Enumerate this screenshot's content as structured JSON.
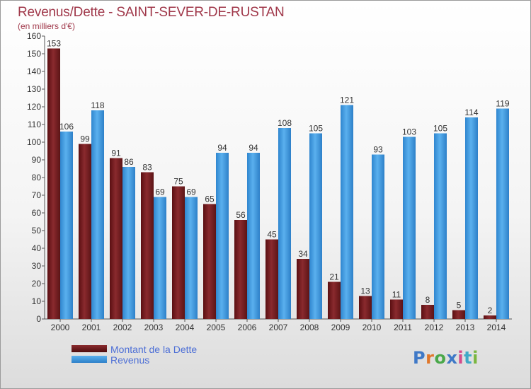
{
  "title": "Revenus/Dette - SAINT-SEVER-DE-RUSTAN",
  "subtitle": "(en milliers d'€)",
  "logo": {
    "text": "Proxiti",
    "colors": [
      "#3f79c7",
      "#e0772a",
      "#4aa84a",
      "#3f79c7",
      "#d44b8c",
      "#3fa9c7",
      "#7ab640"
    ]
  },
  "chart_data": {
    "type": "bar",
    "title": "Revenus/Dette - SAINT-SEVER-DE-RUSTAN",
    "ylabel": "(en milliers d'€)",
    "xlabel": "",
    "ylim": [
      0,
      160
    ],
    "ytick_step": 10,
    "grid": false,
    "legend_position": "bottom-left",
    "categories": [
      "2000",
      "2001",
      "2002",
      "2003",
      "2004",
      "2005",
      "2006",
      "2007",
      "2008",
      "2009",
      "2010",
      "2011",
      "2012",
      "2013",
      "2014"
    ],
    "series": [
      {
        "name": "Montant de la Dette",
        "color": "#7a1a1a",
        "values": [
          153,
          99,
          91,
          83,
          75,
          65,
          56,
          45,
          34,
          21,
          13,
          11,
          8,
          5,
          2
        ]
      },
      {
        "name": "Revenus",
        "color": "#3d9ae0",
        "values": [
          106,
          118,
          86,
          69,
          69,
          94,
          94,
          108,
          105,
          121,
          93,
          103,
          105,
          114,
          119
        ]
      }
    ]
  }
}
